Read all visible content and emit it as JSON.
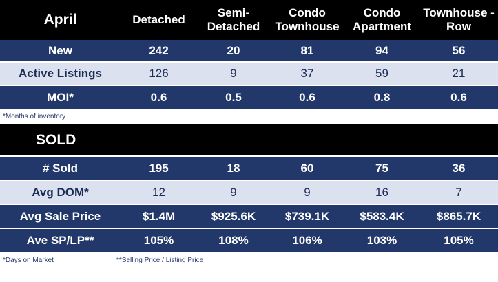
{
  "header": {
    "title": "April",
    "columns": [
      "Detached",
      "Semi-\nDetached",
      "Condo\nTownhouse",
      "Condo\nApartment",
      "Townhouse -\nRow"
    ]
  },
  "listings": [
    {
      "label": "New",
      "values": [
        "242",
        "20",
        "81",
        "94",
        "56"
      ]
    },
    {
      "label": "Active Listings",
      "values": [
        "126",
        "9",
        "37",
        "59",
        "21"
      ]
    },
    {
      "label": "MOI*",
      "values": [
        "0.6",
        "0.5",
        "0.6",
        "0.8",
        "0.6"
      ]
    }
  ],
  "note_moi": "*Months of inventory",
  "sold": {
    "title": "SOLD",
    "rows": [
      {
        "label": "# Sold",
        "values": [
          "195",
          "18",
          "60",
          "75",
          "36"
        ]
      },
      {
        "label": "Avg DOM*",
        "values": [
          "12",
          "9",
          "9",
          "16",
          "7"
        ]
      },
      {
        "label": "Avg Sale Price",
        "values": [
          "$1.4M",
          "$925.6K",
          "$739.1K",
          "$583.4K",
          "$865.7K"
        ]
      },
      {
        "label": "Ave SP/LP**",
        "values": [
          "105%",
          "108%",
          "106%",
          "103%",
          "105%"
        ]
      }
    ]
  },
  "footer": {
    "note_dom": "*Days on Market",
    "note_splp": "**Selling Price / Listing Price"
  },
  "colors": {
    "header_bg": "#000000",
    "dark_row": "#22386a",
    "light_row": "#dbe1ef"
  }
}
